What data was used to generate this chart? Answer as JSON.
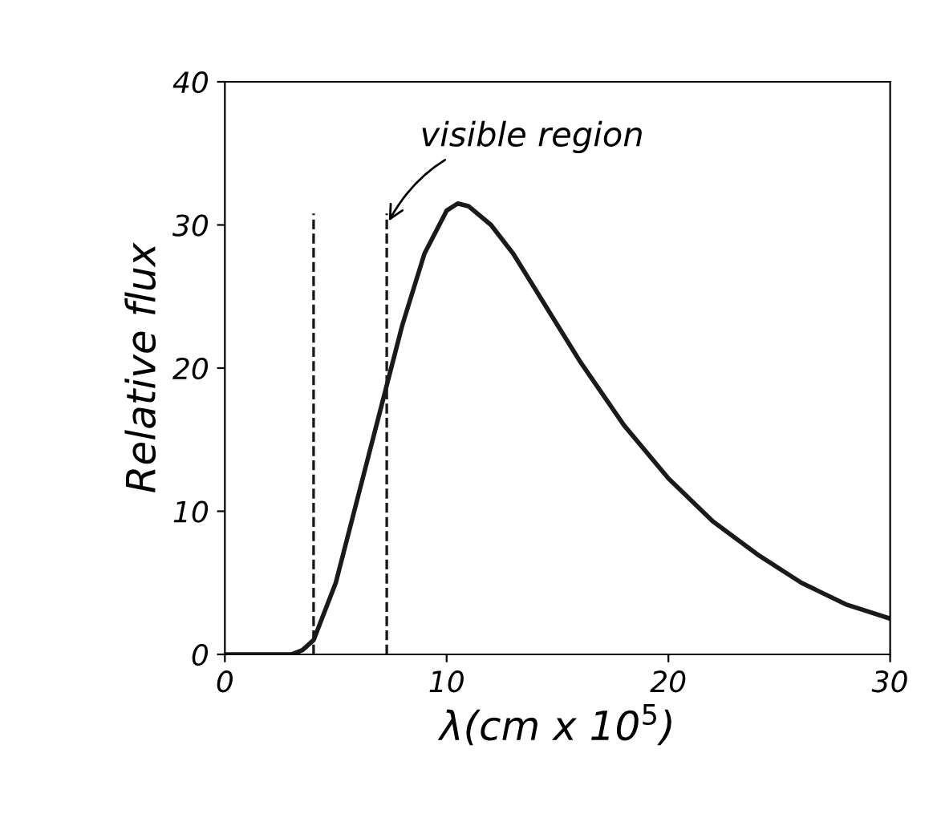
{
  "chart_data": {
    "type": "line",
    "xlabel": "λ(cm x 10$^{5}$)",
    "ylabel": "Relative flux",
    "x": [
      0,
      2,
      3,
      3.5,
      4,
      5,
      6,
      7,
      8,
      9,
      10,
      10.5,
      11,
      12,
      13,
      14,
      15,
      16,
      18,
      20,
      22,
      24,
      26,
      28,
      30
    ],
    "series": [
      {
        "color": "#1a1a1a",
        "values": [
          0,
          0,
          0,
          0.3,
          1,
          5,
          11,
          17,
          23,
          28,
          31,
          31.5,
          31.3,
          30,
          28,
          25.5,
          23,
          20.5,
          16,
          12.3,
          9.3,
          7,
          5,
          3.5,
          2.5
        ]
      }
    ],
    "xlim": [
      0,
      30
    ],
    "xticks": [
      0,
      10,
      20,
      30
    ],
    "ylim": [
      0,
      40
    ],
    "yticks": [
      0,
      10,
      20,
      30,
      40
    ],
    "ref_lines": [
      {
        "axis": "x",
        "value": 4,
        "line_style": "dashed",
        "color": "#1a1a1a"
      },
      {
        "axis": "x",
        "value": 7.3,
        "line_style": "dashed",
        "color": "#1a1a1a"
      }
    ],
    "annotations": [
      {
        "text": "visible region",
        "x": 7.3,
        "y": 30
      }
    ],
    "grid": false,
    "legend": false,
    "marker": "none",
    "line_style": "solid"
  }
}
